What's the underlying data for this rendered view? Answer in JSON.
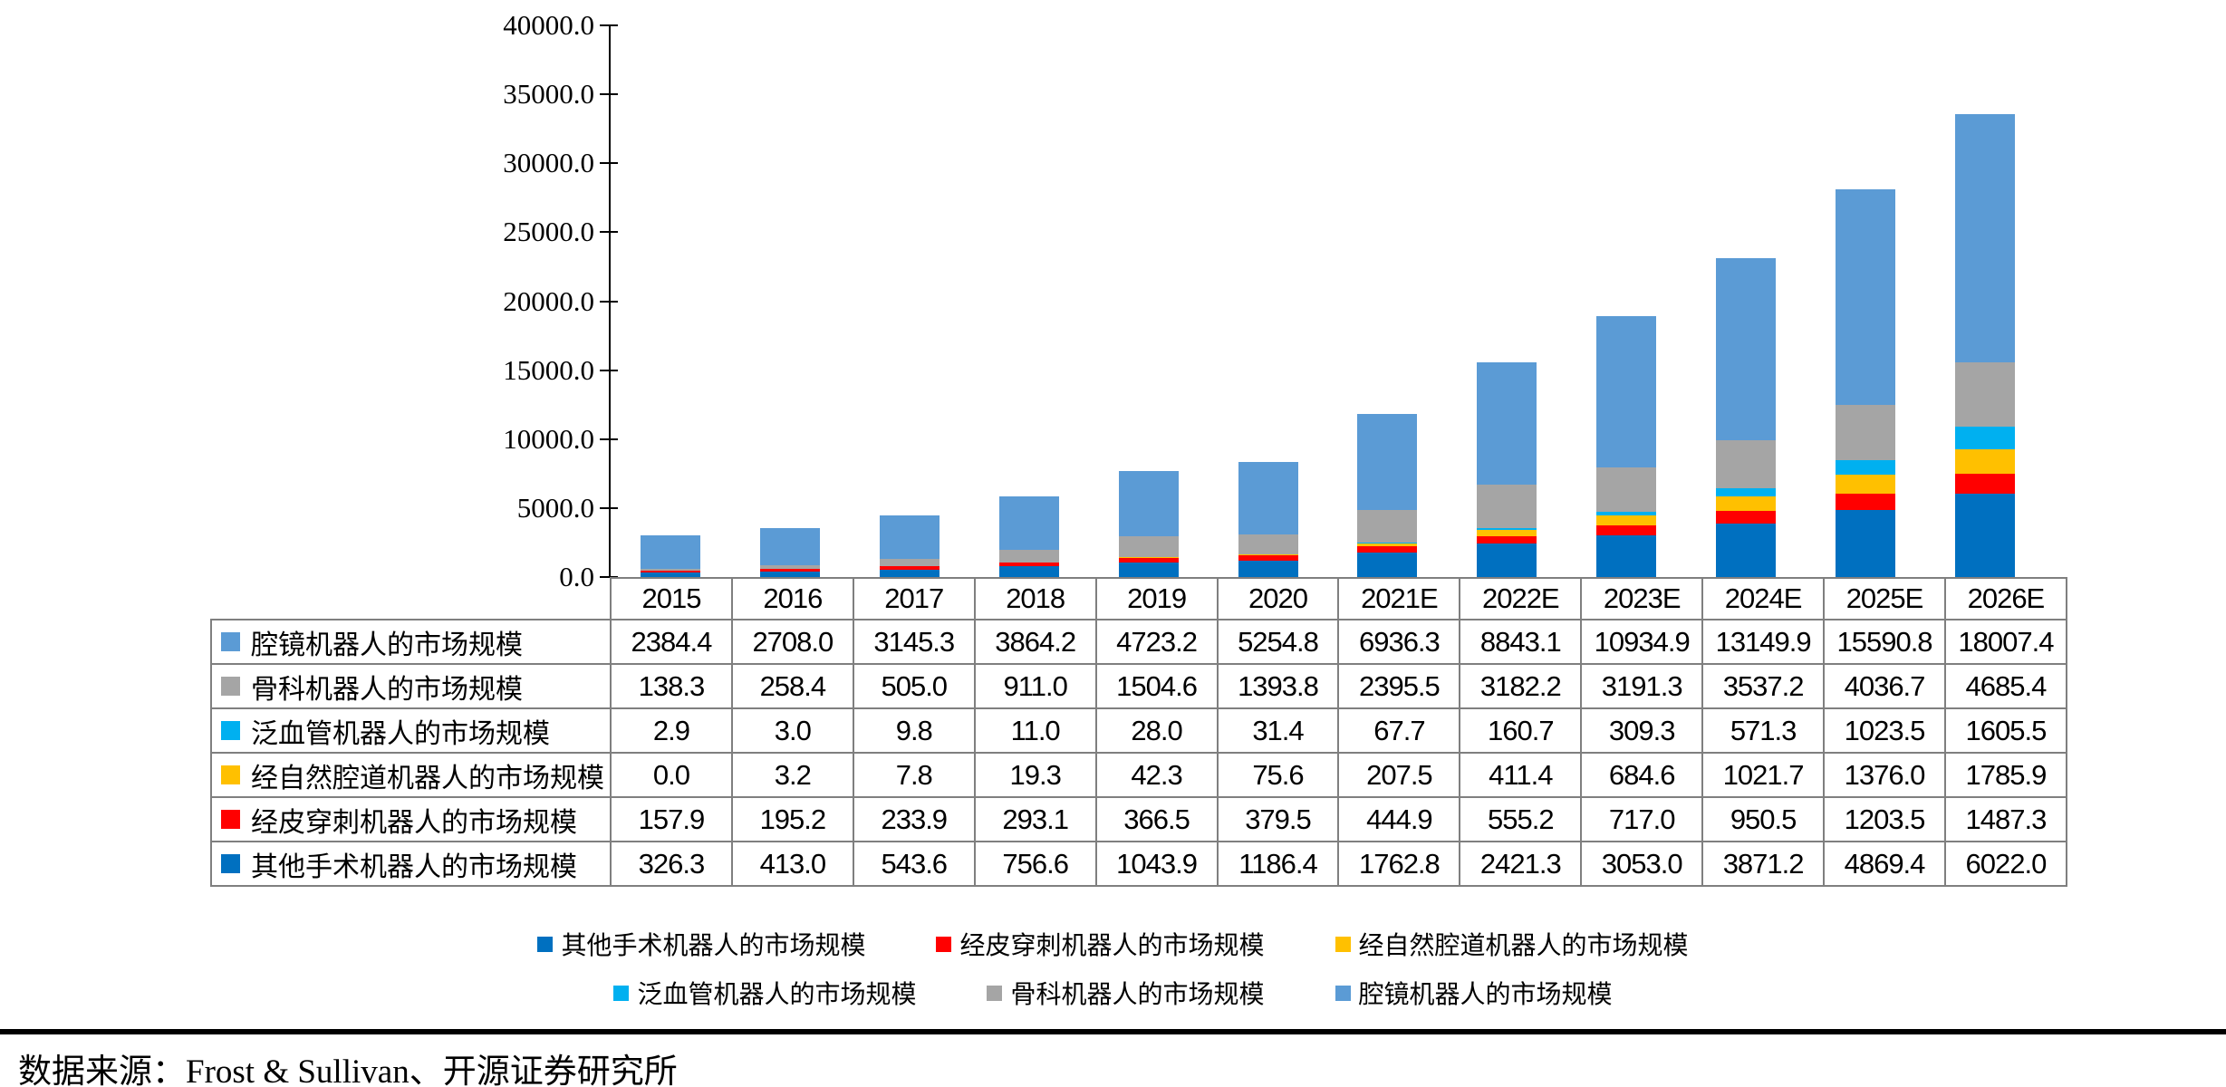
{
  "chart_data": {
    "type": "bar",
    "stacked": true,
    "title": "",
    "xlabel": "",
    "ylabel": "",
    "ylim": [
      0,
      40000
    ],
    "ytick_step": 5000,
    "ytick_labels": [
      "0.0",
      "5000.0",
      "10000.0",
      "15000.0",
      "20000.0",
      "25000.0",
      "30000.0",
      "35000.0",
      "40000.0"
    ],
    "grid": false,
    "legend_position": "bottom",
    "categories": [
      "2015",
      "2016",
      "2017",
      "2018",
      "2019",
      "2020",
      "2021E",
      "2022E",
      "2023E",
      "2024E",
      "2025E",
      "2026E"
    ],
    "series": [
      {
        "name": "其他手术机器人的市场规模",
        "color": "#0070C0",
        "values": [
          326.3,
          413.0,
          543.6,
          756.6,
          1043.9,
          1186.4,
          1762.8,
          2421.3,
          3053.0,
          3871.2,
          4869.4,
          6022.0
        ]
      },
      {
        "name": "经皮穿刺机器人的市场规模",
        "color": "#FF0000",
        "values": [
          157.9,
          195.2,
          233.9,
          293.1,
          366.5,
          379.5,
          444.9,
          555.2,
          717.0,
          950.5,
          1203.5,
          1487.3
        ]
      },
      {
        "name": "经自然腔道机器人的市场规模",
        "color": "#FFC000",
        "values": [
          0.0,
          3.2,
          7.8,
          19.3,
          42.3,
          75.6,
          207.5,
          411.4,
          684.6,
          1021.7,
          1376.0,
          1785.9
        ]
      },
      {
        "name": "泛血管机器人的市场规模",
        "color": "#00B0F0",
        "values": [
          2.9,
          3.0,
          9.8,
          11.0,
          28.0,
          31.4,
          67.7,
          160.7,
          309.3,
          571.3,
          1023.5,
          1605.5
        ]
      },
      {
        "name": "骨科机器人的市场规模",
        "color": "#A5A5A5",
        "values": [
          138.3,
          258.4,
          505.0,
          911.0,
          1504.6,
          1393.8,
          2395.5,
          3182.2,
          3191.3,
          3537.2,
          4036.7,
          4685.4
        ]
      },
      {
        "name": "腔镜机器人的市场规模",
        "color": "#5B9BD5",
        "values": [
          2384.4,
          2708.0,
          3145.3,
          3864.2,
          4723.2,
          5254.8,
          6936.3,
          8843.1,
          10934.9,
          13149.9,
          15590.8,
          18007.4
        ]
      }
    ]
  },
  "table": {
    "header": [
      "2015",
      "2016",
      "2017",
      "2018",
      "2019",
      "2020",
      "2021E",
      "2022E",
      "2023E",
      "2024E",
      "2025E",
      "2026E"
    ],
    "rows": [
      {
        "label": "腔镜机器人的市场规模",
        "color": "#5B9BD5",
        "values": [
          "2384.4",
          "2708.0",
          "3145.3",
          "3864.2",
          "4723.2",
          "5254.8",
          "6936.3",
          "8843.1",
          "10934.9",
          "13149.9",
          "15590.8",
          "18007.4"
        ]
      },
      {
        "label": "骨科机器人的市场规模",
        "color": "#A5A5A5",
        "values": [
          "138.3",
          "258.4",
          "505.0",
          "911.0",
          "1504.6",
          "1393.8",
          "2395.5",
          "3182.2",
          "3191.3",
          "3537.2",
          "4036.7",
          "4685.4"
        ]
      },
      {
        "label": "泛血管机器人的市场规模",
        "color": "#00B0F0",
        "values": [
          "2.9",
          "3.0",
          "9.8",
          "11.0",
          "28.0",
          "31.4",
          "67.7",
          "160.7",
          "309.3",
          "571.3",
          "1023.5",
          "1605.5"
        ]
      },
      {
        "label": "经自然腔道机器人的市场规模",
        "color": "#FFC000",
        "values": [
          "0.0",
          "3.2",
          "7.8",
          "19.3",
          "42.3",
          "75.6",
          "207.5",
          "411.4",
          "684.6",
          "1021.7",
          "1376.0",
          "1785.9"
        ]
      },
      {
        "label": "经皮穿刺机器人的市场规模",
        "color": "#FF0000",
        "values": [
          "157.9",
          "195.2",
          "233.9",
          "293.1",
          "366.5",
          "379.5",
          "444.9",
          "555.2",
          "717.0",
          "950.5",
          "1203.5",
          "1487.3"
        ]
      },
      {
        "label": "其他手术机器人的市场规模",
        "color": "#0070C0",
        "values": [
          "326.3",
          "413.0",
          "543.6",
          "756.6",
          "1043.9",
          "1186.4",
          "1762.8",
          "2421.3",
          "3053.0",
          "3871.2",
          "4869.4",
          "6022.0"
        ]
      }
    ]
  },
  "legend": {
    "rows": [
      [
        {
          "label": "其他手术机器人的市场规模",
          "color": "#0070C0"
        },
        {
          "label": "经皮穿刺机器人的市场规模",
          "color": "#FF0000"
        },
        {
          "label": "经自然腔道机器人的市场规模",
          "color": "#FFC000"
        }
      ],
      [
        {
          "label": "泛血管机器人的市场规模",
          "color": "#00B0F0"
        },
        {
          "label": "骨科机器人的市场规模",
          "color": "#A5A5A5"
        },
        {
          "label": "腔镜机器人的市场规模",
          "color": "#5B9BD5"
        }
      ]
    ]
  },
  "source": {
    "text": "数据来源：Frost & Sullivan、开源证券研究所"
  }
}
